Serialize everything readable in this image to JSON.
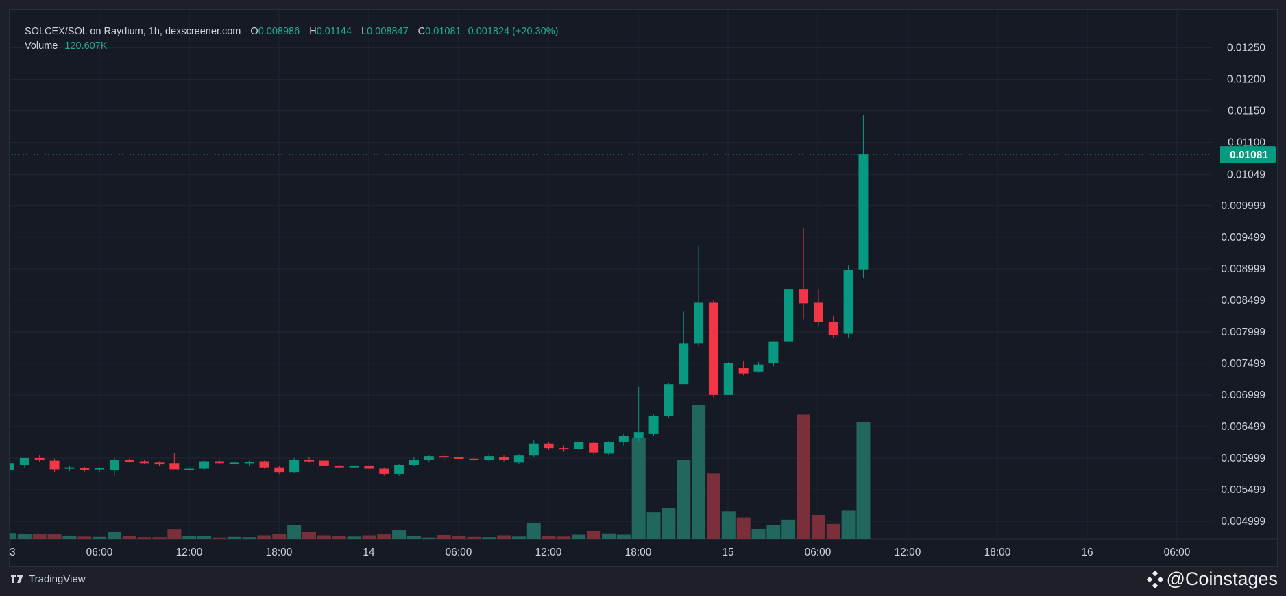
{
  "legend": {
    "symbol": "SOLCEX/SOL on Raydium, 1h, dexscreener.com",
    "o_label": "O",
    "o_value": "0.008986",
    "h_label": "H",
    "h_value": "0.01144",
    "l_label": "L",
    "l_value": "0.008847",
    "c_label": "C",
    "c_value": "0.01081",
    "change": "0.001824 (+20.30%)",
    "volume_label": "Volume",
    "volume_value": "120.607K"
  },
  "footer": {
    "brand": "TradingView",
    "watermark": "@Coinstages"
  },
  "icons": [
    "tradingview-logo-icon",
    "coinstages-diamond-icon"
  ],
  "colors": {
    "up": "#089981",
    "down": "#f23645",
    "up_volume": "#22675d",
    "down_volume": "#7a2f3a",
    "last_price_bg": "#089981",
    "background": "#161a25",
    "grid": "#232733",
    "axis_text": "#d1d4dc"
  },
  "chart_data": {
    "type": "candlestick",
    "title": "SOLCEX/SOL on Raydium, 1h, dexscreener.com",
    "ylim": [
      0.00463,
      0.01293
    ],
    "y_ticks": [
      "0.004999",
      "0.005499",
      "0.005999",
      "0.006499",
      "0.006999",
      "0.007499",
      "0.007999",
      "0.008499",
      "0.008999",
      "0.009499",
      "0.009999",
      "0.01049",
      "0.01100",
      "0.01150",
      "0.01200",
      "0.01250"
    ],
    "x_ticks": [
      "3",
      "06:00",
      "12:00",
      "18:00",
      "14",
      "06:00",
      "12:00",
      "18:00",
      "15",
      "06:00",
      "12:00",
      "18:00",
      "16",
      "06:00"
    ],
    "last_price": "0.01081",
    "grid": true,
    "candles": [
      {
        "o": 0.00581,
        "h": 0.00592,
        "l": 0.00576,
        "c": 0.00592,
        "v": 1.9
      },
      {
        "o": 0.00589,
        "h": 0.006,
        "l": 0.00585,
        "c": 0.006,
        "v": 1.5
      },
      {
        "o": 0.006,
        "h": 0.00605,
        "l": 0.00594,
        "c": 0.00597,
        "v": 1.6
      },
      {
        "o": 0.00596,
        "h": 0.00599,
        "l": 0.00578,
        "c": 0.00582,
        "v": 1.5
      },
      {
        "o": 0.00583,
        "h": 0.00587,
        "l": 0.00579,
        "c": 0.00585,
        "v": 1.1
      },
      {
        "o": 0.00584,
        "h": 0.00586,
        "l": 0.00578,
        "c": 0.00581,
        "v": 0.8
      },
      {
        "o": 0.00582,
        "h": 0.00585,
        "l": 0.00578,
        "c": 0.00584,
        "v": 0.7
      },
      {
        "o": 0.00581,
        "h": 0.006,
        "l": 0.00572,
        "c": 0.00597,
        "v": 2.4
      },
      {
        "o": 0.00597,
        "h": 0.00599,
        "l": 0.00593,
        "c": 0.00594,
        "v": 0.9
      },
      {
        "o": 0.00595,
        "h": 0.00597,
        "l": 0.0059,
        "c": 0.00592,
        "v": 0.6
      },
      {
        "o": 0.00593,
        "h": 0.00595,
        "l": 0.00587,
        "c": 0.0059,
        "v": 0.6
      },
      {
        "o": 0.00592,
        "h": 0.00608,
        "l": 0.00584,
        "c": 0.00582,
        "v": 3.0
      },
      {
        "o": 0.00583,
        "h": 0.00585,
        "l": 0.0058,
        "c": 0.00583,
        "v": 0.9
      },
      {
        "o": 0.00583,
        "h": 0.00596,
        "l": 0.00581,
        "c": 0.00595,
        "v": 1.0
      },
      {
        "o": 0.00595,
        "h": 0.00597,
        "l": 0.0059,
        "c": 0.00592,
        "v": 0.5
      },
      {
        "o": 0.00592,
        "h": 0.00595,
        "l": 0.00589,
        "c": 0.00593,
        "v": 0.7
      },
      {
        "o": 0.00593,
        "h": 0.00596,
        "l": 0.00588,
        "c": 0.00594,
        "v": 0.6
      },
      {
        "o": 0.00595,
        "h": 0.00596,
        "l": 0.00583,
        "c": 0.00585,
        "v": 1.2
      },
      {
        "o": 0.00585,
        "h": 0.00587,
        "l": 0.00575,
        "c": 0.00578,
        "v": 1.6
      },
      {
        "o": 0.00578,
        "h": 0.006,
        "l": 0.00576,
        "c": 0.00597,
        "v": 4.4
      },
      {
        "o": 0.00597,
        "h": 0.00601,
        "l": 0.00593,
        "c": 0.00596,
        "v": 2.3
      },
      {
        "o": 0.00596,
        "h": 0.00597,
        "l": 0.00587,
        "c": 0.00588,
        "v": 1.2
      },
      {
        "o": 0.00588,
        "h": 0.0059,
        "l": 0.00583,
        "c": 0.00585,
        "v": 0.9
      },
      {
        "o": 0.00585,
        "h": 0.00591,
        "l": 0.00582,
        "c": 0.00588,
        "v": 0.8
      },
      {
        "o": 0.00588,
        "h": 0.0059,
        "l": 0.00581,
        "c": 0.00583,
        "v": 1.2
      },
      {
        "o": 0.00583,
        "h": 0.00585,
        "l": 0.00572,
        "c": 0.00575,
        "v": 1.5
      },
      {
        "o": 0.00575,
        "h": 0.0059,
        "l": 0.00572,
        "c": 0.00589,
        "v": 2.8
      },
      {
        "o": 0.00589,
        "h": 0.00601,
        "l": 0.00587,
        "c": 0.00597,
        "v": 0.9
      },
      {
        "o": 0.00597,
        "h": 0.00604,
        "l": 0.00594,
        "c": 0.00603,
        "v": 0.5
      },
      {
        "o": 0.00603,
        "h": 0.00608,
        "l": 0.00595,
        "c": 0.00601,
        "v": 1.3
      },
      {
        "o": 0.00601,
        "h": 0.00604,
        "l": 0.00596,
        "c": 0.00599,
        "v": 1.1
      },
      {
        "o": 0.00599,
        "h": 0.00602,
        "l": 0.00596,
        "c": 0.00598,
        "v": 0.7
      },
      {
        "o": 0.00597,
        "h": 0.00607,
        "l": 0.00595,
        "c": 0.00603,
        "v": 0.6
      },
      {
        "o": 0.00602,
        "h": 0.00604,
        "l": 0.00595,
        "c": 0.00597,
        "v": 1.2
      },
      {
        "o": 0.00593,
        "h": 0.00606,
        "l": 0.00591,
        "c": 0.00604,
        "v": 0.8
      },
      {
        "o": 0.00604,
        "h": 0.00628,
        "l": 0.00601,
        "c": 0.00623,
        "v": 5.2
      },
      {
        "o": 0.00623,
        "h": 0.00625,
        "l": 0.00613,
        "c": 0.00616,
        "v": 1.0
      },
      {
        "o": 0.00616,
        "h": 0.0062,
        "l": 0.0061,
        "c": 0.00614,
        "v": 0.8
      },
      {
        "o": 0.00614,
        "h": 0.00628,
        "l": 0.00613,
        "c": 0.00626,
        "v": 1.4
      },
      {
        "o": 0.00624,
        "h": 0.00626,
        "l": 0.00604,
        "c": 0.00609,
        "v": 2.6
      },
      {
        "o": 0.00607,
        "h": 0.00627,
        "l": 0.00604,
        "c": 0.00625,
        "v": 1.8
      },
      {
        "o": 0.00626,
        "h": 0.00638,
        "l": 0.0062,
        "c": 0.00635,
        "v": 1.4
      },
      {
        "o": 0.00632,
        "h": 0.00713,
        "l": 0.00625,
        "c": 0.00641,
        "v": 31.9
      },
      {
        "o": 0.00638,
        "h": 0.00669,
        "l": 0.00635,
        "c": 0.00667,
        "v": 8.4
      },
      {
        "o": 0.00667,
        "h": 0.00719,
        "l": 0.00664,
        "c": 0.00717,
        "v": 9.9
      },
      {
        "o": 0.00717,
        "h": 0.00832,
        "l": 0.00717,
        "c": 0.00782,
        "v": 25.1
      },
      {
        "o": 0.00782,
        "h": 0.00937,
        "l": 0.00776,
        "c": 0.00846,
        "v": 42.2
      },
      {
        "o": 0.00846,
        "h": 0.0085,
        "l": 0.00696,
        "c": 0.007,
        "v": 20.7
      },
      {
        "o": 0.007,
        "h": 0.00752,
        "l": 0.007,
        "c": 0.0075,
        "v": 8.8
      },
      {
        "o": 0.00743,
        "h": 0.00753,
        "l": 0.00731,
        "c": 0.00734,
        "v": 6.8
      },
      {
        "o": 0.00737,
        "h": 0.00752,
        "l": 0.00735,
        "c": 0.00748,
        "v": 3.1
      },
      {
        "o": 0.0075,
        "h": 0.00785,
        "l": 0.00745,
        "c": 0.00785,
        "v": 4.4
      },
      {
        "o": 0.00785,
        "h": 0.00867,
        "l": 0.00785,
        "c": 0.00867,
        "v": 6.1
      },
      {
        "o": 0.00867,
        "h": 0.00964,
        "l": 0.0082,
        "c": 0.00845,
        "v": 39.3
      },
      {
        "o": 0.00846,
        "h": 0.00867,
        "l": 0.00808,
        "c": 0.00815,
        "v": 7.6
      },
      {
        "o": 0.00815,
        "h": 0.00825,
        "l": 0.0079,
        "c": 0.00795,
        "v": 4.8
      },
      {
        "o": 0.00797,
        "h": 0.00905,
        "l": 0.0079,
        "c": 0.00898,
        "v": 9.0
      },
      {
        "o": 0.00899,
        "h": 0.01144,
        "l": 0.00885,
        "c": 0.01081,
        "v": 36.8
      }
    ]
  }
}
